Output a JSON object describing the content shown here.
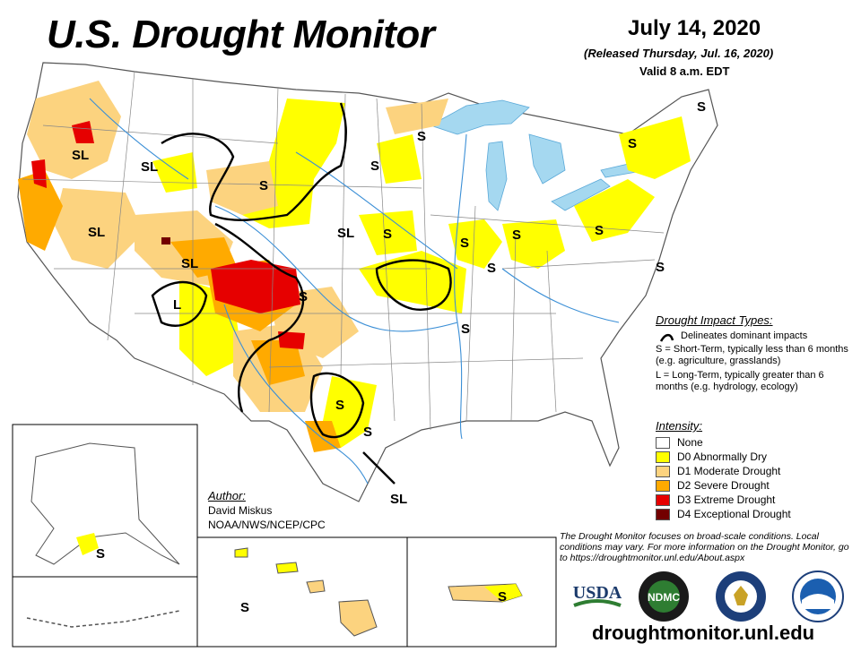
{
  "header": {
    "title": "U.S. Drought Monitor",
    "date": "July 14, 2020",
    "released": "(Released Thursday, Jul. 16, 2020)",
    "valid": "Valid 8 a.m. EDT"
  },
  "impact_legend": {
    "heading": "Drought Impact Types:",
    "delineates": "Delineates dominant impacts",
    "short_term": "S = Short-Term, typically less than 6 months (e.g. agriculture, grasslands)",
    "long_term": "L = Long-Term, typically greater than 6 months (e.g. hydrology, ecology)"
  },
  "intensity_legend": {
    "heading": "Intensity:",
    "items": [
      {
        "label": "None",
        "color": "#ffffff"
      },
      {
        "label": "D0 Abnormally Dry",
        "color": "#ffff00"
      },
      {
        "label": "D1 Moderate Drought",
        "color": "#fcd37f"
      },
      {
        "label": "D2 Severe Drought",
        "color": "#ffaa00"
      },
      {
        "label": "D3 Extreme Drought",
        "color": "#e60000"
      },
      {
        "label": "D4 Exceptional Drought",
        "color": "#730000"
      }
    ]
  },
  "author": {
    "label": "Author:",
    "name": "David Miskus",
    "org": "NOAA/NWS/NCEP/CPC"
  },
  "disclaimer": "The Drought Monitor focuses on broad-scale conditions. Local conditions may vary. For more information on the Drought Monitor, go to https://droughtmonitor.unl.edu/About.aspx",
  "website": "droughtmonitor.unl.edu",
  "logos": {
    "usda": "USDA",
    "ndmc": "NDMC"
  },
  "map_labels": {
    "s": "S",
    "l": "L",
    "sl": "SL"
  },
  "colors": {
    "water": "#a5d8f0",
    "river": "#3b8fd6",
    "border": "#888888",
    "impact_line": "#000000"
  }
}
